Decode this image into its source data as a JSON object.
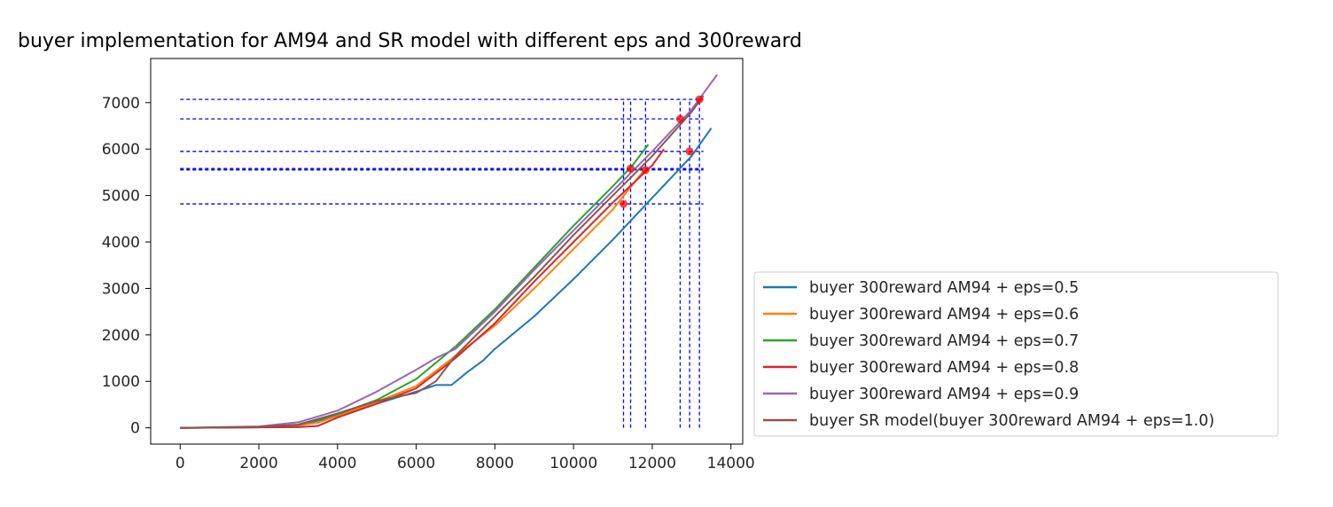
{
  "chart_data": {
    "type": "line",
    "title": "buyer implementation for AM94 and SR model with different eps and 300reward",
    "xlabel": "",
    "ylabel": "",
    "xlim": [
      -750,
      14300
    ],
    "ylim": [
      -350,
      7950
    ],
    "xticks": [
      0,
      2000,
      4000,
      6000,
      8000,
      10000,
      12000,
      14000
    ],
    "yticks": [
      0,
      1000,
      2000,
      3000,
      4000,
      5000,
      6000,
      7000
    ],
    "grid": false,
    "legend_position": "outside-right-bottom",
    "series": [
      {
        "name": "buyer 300reward AM94 + eps=0.5",
        "color": "#1f77b4",
        "points": [
          [
            0,
            0
          ],
          [
            2000,
            10
          ],
          [
            3000,
            60
          ],
          [
            4000,
            250
          ],
          [
            5000,
            520
          ],
          [
            6000,
            780
          ],
          [
            6500,
            920
          ],
          [
            6900,
            920
          ],
          [
            7300,
            1200
          ],
          [
            7700,
            1450
          ],
          [
            8000,
            1700
          ],
          [
            9000,
            2400
          ],
          [
            10000,
            3200
          ],
          [
            11000,
            4050
          ],
          [
            12000,
            4950
          ],
          [
            13000,
            5850
          ],
          [
            13500,
            6450
          ]
        ]
      },
      {
        "name": "buyer 300reward AM94 + eps=0.6",
        "color": "#ff7f0e",
        "points": [
          [
            0,
            0
          ],
          [
            2000,
            15
          ],
          [
            3000,
            50
          ],
          [
            3500,
            110
          ],
          [
            4000,
            260
          ],
          [
            5000,
            560
          ],
          [
            6000,
            900
          ],
          [
            7000,
            1550
          ],
          [
            8000,
            2200
          ],
          [
            9000,
            3000
          ],
          [
            10000,
            3850
          ],
          [
            11000,
            4700
          ],
          [
            11800,
            5550
          ]
        ]
      },
      {
        "name": "buyer 300reward AM94 + eps=0.7",
        "color": "#2ca02c",
        "points": [
          [
            0,
            0
          ],
          [
            2000,
            15
          ],
          [
            3000,
            60
          ],
          [
            4000,
            290
          ],
          [
            5000,
            600
          ],
          [
            6000,
            1050
          ],
          [
            7000,
            1750
          ],
          [
            8000,
            2550
          ],
          [
            9000,
            3450
          ],
          [
            10000,
            4350
          ],
          [
            11000,
            5200
          ],
          [
            11500,
            5650
          ],
          [
            11900,
            6100
          ]
        ]
      },
      {
        "name": "buyer 300reward AM94 + eps=0.8",
        "color": "#d62728",
        "points": [
          [
            0,
            0
          ],
          [
            2000,
            10
          ],
          [
            3000,
            15
          ],
          [
            3500,
            40
          ],
          [
            4000,
            220
          ],
          [
            5000,
            520
          ],
          [
            6000,
            850
          ],
          [
            7000,
            1500
          ],
          [
            8000,
            2250
          ],
          [
            9000,
            3150
          ],
          [
            10000,
            4000
          ],
          [
            11000,
            4850
          ],
          [
            12000,
            5650
          ],
          [
            12300,
            6000
          ]
        ]
      },
      {
        "name": "buyer 300reward AM94 + eps=0.9",
        "color": "#9467bd",
        "points": [
          [
            0,
            0
          ],
          [
            2000,
            30
          ],
          [
            3000,
            120
          ],
          [
            4000,
            370
          ],
          [
            5000,
            780
          ],
          [
            6000,
            1250
          ],
          [
            6500,
            1500
          ],
          [
            7000,
            1700
          ],
          [
            8000,
            2500
          ],
          [
            9000,
            3400
          ],
          [
            10000,
            4250
          ],
          [
            11000,
            5100
          ],
          [
            12000,
            5950
          ],
          [
            13000,
            6850
          ],
          [
            13650,
            7600
          ]
        ]
      },
      {
        "name": "buyer SR model(buyer 300reward AM94 + eps=1.0)",
        "color": "#8c564b",
        "points": [
          [
            0,
            0
          ],
          [
            2000,
            20
          ],
          [
            3000,
            70
          ],
          [
            4000,
            310
          ],
          [
            5000,
            580
          ],
          [
            6000,
            750
          ],
          [
            6500,
            1000
          ],
          [
            7000,
            1550
          ],
          [
            8000,
            2400
          ],
          [
            9000,
            3250
          ],
          [
            10000,
            4150
          ],
          [
            11000,
            5000
          ],
          [
            12000,
            5850
          ],
          [
            13000,
            6800
          ],
          [
            13300,
            7150
          ]
        ]
      }
    ],
    "reference_lines": {
      "color": "#0000ff",
      "style": "dashed",
      "horizontal_y": [
        7070,
        6650,
        5950,
        5580,
        5560,
        5550,
        4820
      ],
      "vertical_x": [
        11270,
        11450,
        11830,
        12710,
        12950,
        13200
      ]
    },
    "markers": {
      "color": "#ff0000",
      "points": [
        [
          11270,
          4820
        ],
        [
          11450,
          5580
        ],
        [
          11830,
          5550
        ],
        [
          12710,
          6650
        ],
        [
          12950,
          5950
        ],
        [
          13200,
          7070
        ]
      ]
    }
  }
}
